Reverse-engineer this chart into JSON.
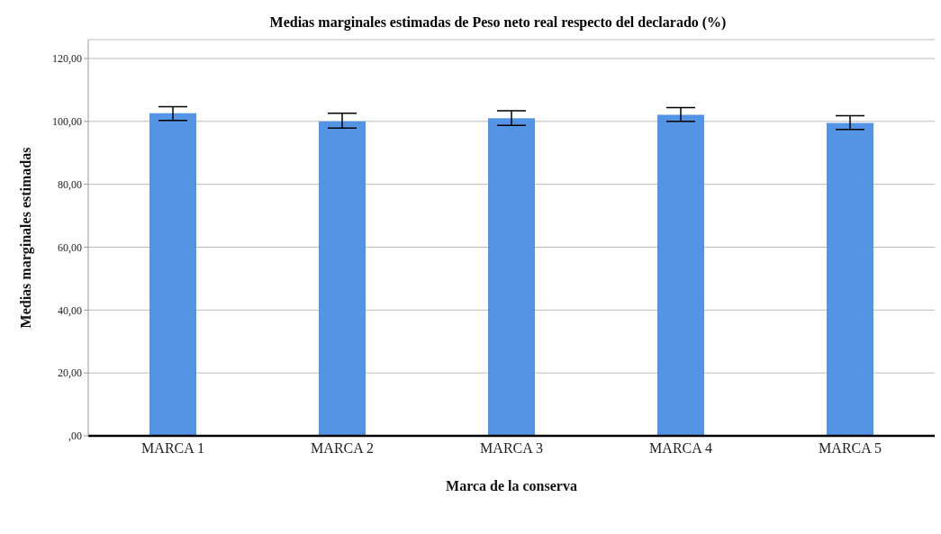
{
  "chart_data": {
    "type": "bar",
    "title": "Medias marginales estimadas de Peso neto real respecto del declarado (%)",
    "xlabel": "Marca de la conserva",
    "ylabel": "Medias marginales estimadas",
    "categories": [
      "MARCA 1",
      "MARCA 2",
      "MARCA 3",
      "MARCA 4",
      "MARCA 5"
    ],
    "values": [
      102.6,
      100.0,
      101.0,
      102.1,
      99.5
    ],
    "errors": [
      [
        100.3,
        104.7
      ],
      [
        97.9,
        102.6
      ],
      [
        98.7,
        103.4
      ],
      [
        100.0,
        104.4
      ],
      [
        97.4,
        101.8
      ]
    ],
    "color": "#5494e4",
    "ylim": [
      0,
      126
    ],
    "yticks": [
      {
        "value": 0,
        "label": ",00"
      },
      {
        "value": 20,
        "label": "20,00"
      },
      {
        "value": 40,
        "label": "40,00"
      },
      {
        "value": 60,
        "label": "60,00"
      },
      {
        "value": 80,
        "label": "80,00"
      },
      {
        "value": 100,
        "label": "100,00"
      },
      {
        "value": 120,
        "label": "120,00"
      }
    ],
    "grid": "y"
  }
}
